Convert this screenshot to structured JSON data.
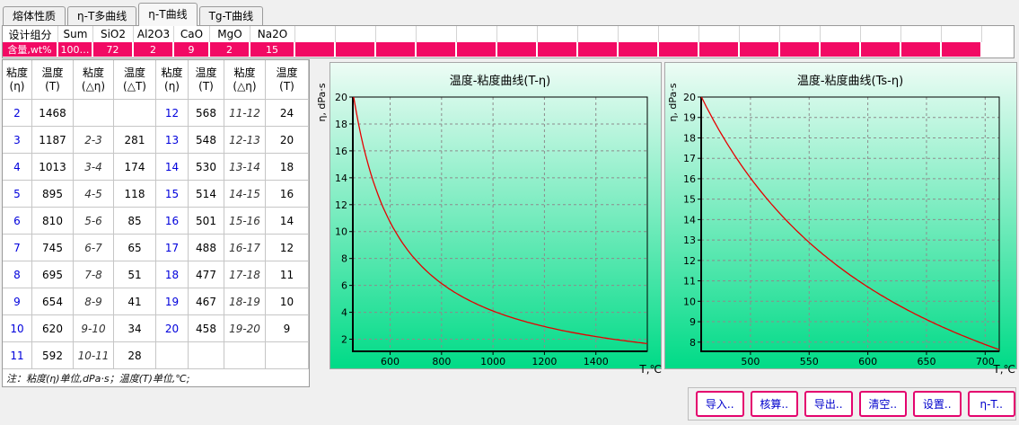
{
  "tabs": [
    {
      "id": "melt-properties",
      "label": "熔体性质",
      "active": false
    },
    {
      "id": "eta-T-multi",
      "label": "η-T多曲线",
      "active": false
    },
    {
      "id": "eta-T",
      "label": "η-T曲线",
      "active": true
    },
    {
      "id": "Tg-T",
      "label": "Tg-T曲线",
      "active": false
    }
  ],
  "composition": {
    "header": [
      "设计组分",
      "Sum",
      "SiO2",
      "Al2O3",
      "CaO",
      "MgO",
      "Na2O"
    ],
    "row_label": "含量,wt%",
    "values": [
      "100…",
      "72",
      "2",
      "9",
      "2",
      "15"
    ],
    "pink_color": "#f20a64"
  },
  "viscosity_table": {
    "headers": [
      [
        "粘度",
        "(η)"
      ],
      [
        "温度",
        "(T)"
      ],
      [
        "粘度",
        "(△η)"
      ],
      [
        "温度",
        "(△T)"
      ],
      [
        "粘度",
        "(η)"
      ],
      [
        "温度",
        "(T)"
      ],
      [
        "粘度",
        "(△η)"
      ],
      [
        "温度",
        "(T)"
      ]
    ],
    "rows": [
      [
        "2",
        "1468",
        "",
        "",
        "12",
        "568",
        "11-12",
        "24"
      ],
      [
        "3",
        "1187",
        "2-3",
        "281",
        "13",
        "548",
        "12-13",
        "20"
      ],
      [
        "4",
        "1013",
        "3-4",
        "174",
        "14",
        "530",
        "13-14",
        "18"
      ],
      [
        "5",
        "895",
        "4-5",
        "118",
        "15",
        "514",
        "14-15",
        "16"
      ],
      [
        "6",
        "810",
        "5-6",
        "85",
        "16",
        "501",
        "15-16",
        "14"
      ],
      [
        "7",
        "745",
        "6-7",
        "65",
        "17",
        "488",
        "16-17",
        "12"
      ],
      [
        "8",
        "695",
        "7-8",
        "51",
        "18",
        "477",
        "17-18",
        "11"
      ],
      [
        "9",
        "654",
        "8-9",
        "41",
        "19",
        "467",
        "18-19",
        "10"
      ],
      [
        "10",
        "620",
        "9-10",
        "34",
        "20",
        "458",
        "19-20",
        "9"
      ],
      [
        "11",
        "592",
        "10-11",
        "28",
        "",
        "",
        "",
        ""
      ]
    ],
    "note": "注：粘度(η)单位,dPa·s；温度(T)单位,℃;"
  },
  "chart_data": {
    "type": "line",
    "series": {
      "name": "viscosity-temperature curve",
      "T": [
        458,
        467,
        477,
        488,
        501,
        514,
        530,
        548,
        568,
        592,
        620,
        654,
        695,
        745,
        810,
        895,
        1013,
        1187,
        1468
      ],
      "eta": [
        20,
        19,
        18,
        17,
        16,
        15,
        14,
        13,
        12,
        11,
        10,
        9,
        8,
        7,
        6,
        5,
        4,
        3,
        2
      ]
    },
    "model": {
      "A": 276,
      "B": 3872,
      "C": 1.248
    },
    "line_color": "#e60000",
    "gradient": [
      "#edfcf5",
      "#00db87"
    ],
    "grid_color": "#8c8c8c",
    "charts": [
      {
        "title": "温度-粘度曲线(T-η)",
        "xlabel": "T,℃",
        "ylabel": "η, dPa·s",
        "xlim": [
          455,
          1600
        ],
        "ylim": [
          1.1,
          20
        ],
        "xticks": [
          600,
          800,
          1000,
          1200,
          1400
        ],
        "yticks": [
          2,
          4,
          6,
          8,
          10,
          12,
          14,
          16,
          18,
          20
        ]
      },
      {
        "title": "温度-粘度曲线(Ts-η)",
        "xlabel": "T,℃",
        "ylabel": "η, dPa·s",
        "xlim": [
          458,
          712
        ],
        "ylim": [
          7.55,
          20
        ],
        "xticks": [
          500,
          550,
          600,
          650,
          700
        ],
        "yticks": [
          8,
          9,
          10,
          11,
          12,
          13,
          14,
          15,
          16,
          17,
          18,
          19,
          20
        ]
      }
    ]
  },
  "buttons": [
    {
      "id": "import",
      "label": "导入.."
    },
    {
      "id": "calculate",
      "label": "核算.."
    },
    {
      "id": "export",
      "label": "导出.."
    },
    {
      "id": "clear",
      "label": "清空.."
    },
    {
      "id": "settings",
      "label": "设置.."
    },
    {
      "id": "eta-T",
      "label": "η-T.."
    }
  ]
}
